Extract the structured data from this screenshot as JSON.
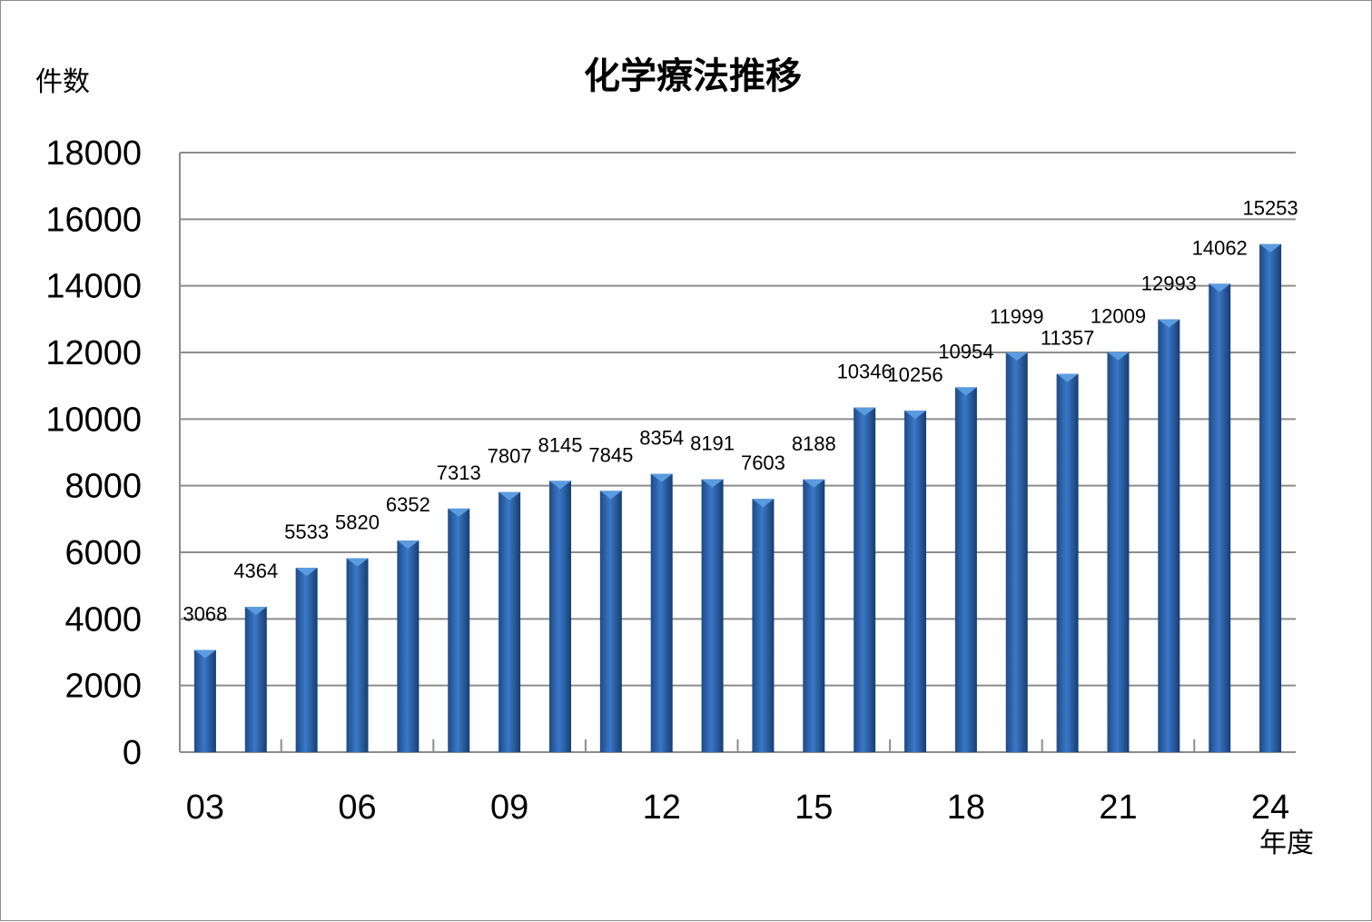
{
  "chart_data": {
    "type": "bar",
    "title": "化学療法推移",
    "ylabel": "件数",
    "xlabel": "年度",
    "ylim": [
      0,
      18000
    ],
    "yticks": [
      0,
      2000,
      4000,
      6000,
      8000,
      10000,
      12000,
      14000,
      16000,
      18000
    ],
    "categories": [
      "03",
      "04",
      "05",
      "06",
      "07",
      "08",
      "09",
      "10",
      "11",
      "12",
      "13",
      "14",
      "15",
      "16",
      "17",
      "18",
      "19",
      "20",
      "21",
      "22",
      "23",
      "24"
    ],
    "xtick_labels": [
      "03",
      "06",
      "09",
      "12",
      "15",
      "18",
      "21",
      "24"
    ],
    "values": [
      3068,
      4364,
      5533,
      5820,
      6352,
      7313,
      7807,
      8145,
      7845,
      8354,
      8191,
      7603,
      8188,
      10346,
      10256,
      10954,
      11999,
      11357,
      12009,
      12993,
      14062,
      15253
    ],
    "grid": true,
    "legend": "none",
    "colors": {
      "bar_dark": "#1f4f8f",
      "bar_light": "#5b9be0",
      "grid": "#8c8c8c"
    }
  }
}
